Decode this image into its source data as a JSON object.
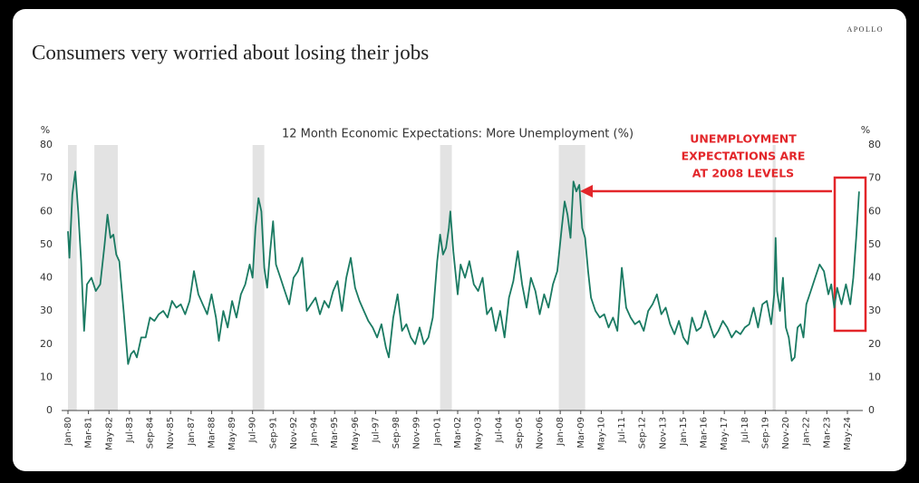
{
  "brand": "APOLLO",
  "chart_data": {
    "type": "line",
    "title": "Consumers very worried about losing their jobs",
    "subtitle": "12 Month Economic Expectations: More Unemployment (%)",
    "ylabel": "%",
    "y2label": "%",
    "annotation": [
      "UNEMPLOYMENT",
      "EXPECTATIONS ARE",
      "AT 2008 LEVELS"
    ],
    "annotation_color": "#e3262a",
    "color": "#1a7a62",
    "recession_color": "#e3e3e3",
    "ylim": [
      0,
      80
    ],
    "yticks": [
      0,
      10,
      20,
      30,
      40,
      50,
      60,
      70,
      80
    ],
    "y2lim": [
      0,
      80
    ],
    "y2ticks": [
      0,
      10,
      20,
      30,
      40,
      50,
      60,
      70,
      80
    ],
    "xticks": [
      "Jan-80",
      "Mar-81",
      "May-82",
      "Jul-83",
      "Sep-84",
      "Nov-85",
      "Jan-87",
      "Mar-88",
      "May-89",
      "Jul-90",
      "Sep-91",
      "Nov-92",
      "Jan-94",
      "Mar-95",
      "May-96",
      "Jul-97",
      "Sep-98",
      "Nov-99",
      "Jan-01",
      "Mar-02",
      "May-03",
      "Jul-04",
      "Sep-05",
      "Nov-06",
      "Jan-08",
      "Mar-09",
      "May-10",
      "Jul-11",
      "Sep-12",
      "Nov-13",
      "Jan-15",
      "Mar-16",
      "May-17",
      "Jul-18",
      "Sep-19",
      "Nov-20",
      "Jan-22",
      "Mar-23",
      "May-24"
    ],
    "recessions": [
      [
        "Jan-80",
        "Jul-80"
      ],
      [
        "Jul-81",
        "Nov-82"
      ],
      [
        "Jul-90",
        "Mar-91"
      ],
      [
        "Mar-01",
        "Nov-01"
      ],
      [
        "Dec-07",
        "Jun-09"
      ],
      [
        "Feb-20",
        "Apr-20"
      ]
    ],
    "x": [
      "Jan-80",
      "Feb-80",
      "Apr-80",
      "Jun-80",
      "Aug-80",
      "Oct-80",
      "Dec-80",
      "Feb-81",
      "May-81",
      "Aug-81",
      "Nov-81",
      "Feb-82",
      "Apr-82",
      "Jun-82",
      "Aug-82",
      "Oct-82",
      "Dec-82",
      "Mar-83",
      "Jun-83",
      "Aug-83",
      "Oct-83",
      "Dec-83",
      "Mar-84",
      "Jun-84",
      "Sep-84",
      "Dec-84",
      "Mar-85",
      "Jun-85",
      "Sep-85",
      "Dec-85",
      "Mar-86",
      "Jun-86",
      "Sep-86",
      "Dec-86",
      "Mar-87",
      "Jun-87",
      "Sep-87",
      "Dec-87",
      "Mar-88",
      "Jun-88",
      "Aug-88",
      "Nov-88",
      "Feb-89",
      "May-89",
      "Aug-89",
      "Nov-89",
      "Feb-90",
      "May-90",
      "Jul-90",
      "Sep-90",
      "Nov-90",
      "Jan-91",
      "Mar-91",
      "May-91",
      "Jul-91",
      "Sep-91",
      "Nov-91",
      "Feb-92",
      "May-92",
      "Aug-92",
      "Nov-92",
      "Feb-93",
      "May-93",
      "Aug-93",
      "Nov-93",
      "Feb-94",
      "May-94",
      "Aug-94",
      "Nov-94",
      "Feb-95",
      "May-95",
      "Aug-95",
      "Nov-95",
      "Feb-96",
      "May-96",
      "Aug-96",
      "Nov-96",
      "Feb-97",
      "May-97",
      "Aug-97",
      "Nov-97",
      "Feb-98",
      "Apr-98",
      "Jul-98",
      "Oct-98",
      "Jan-99",
      "Apr-99",
      "Jul-99",
      "Oct-99",
      "Jan-00",
      "Apr-00",
      "Jul-00",
      "Oct-00",
      "Jan-01",
      "Mar-01",
      "May-01",
      "Jul-01",
      "Sep-01",
      "Oct-01",
      "Dec-01",
      "Mar-02",
      "May-02",
      "Aug-02",
      "Nov-02",
      "Feb-03",
      "May-03",
      "Aug-03",
      "Nov-03",
      "Feb-04",
      "May-04",
      "Aug-04",
      "Nov-04",
      "Feb-05",
      "May-05",
      "Aug-05",
      "Nov-05",
      "Feb-06",
      "May-06",
      "Aug-06",
      "Nov-06",
      "Feb-07",
      "May-07",
      "Aug-07",
      "Nov-07",
      "Feb-08",
      "Apr-08",
      "Jun-08",
      "Aug-08",
      "Oct-08",
      "Dec-08",
      "Feb-09",
      "Apr-09",
      "Jun-09",
      "Aug-09",
      "Oct-09",
      "Jan-10",
      "Apr-10",
      "Jul-10",
      "Oct-10",
      "Jan-11",
      "Apr-11",
      "Jul-11",
      "Oct-11",
      "Jan-12",
      "Apr-12",
      "Jul-12",
      "Oct-12",
      "Jan-13",
      "Apr-13",
      "Jul-13",
      "Oct-13",
      "Jan-14",
      "Apr-14",
      "Jul-14",
      "Oct-14",
      "Jan-15",
      "Apr-15",
      "Jul-15",
      "Oct-15",
      "Jan-16",
      "Apr-16",
      "Jul-16",
      "Oct-16",
      "Jan-17",
      "Apr-17",
      "Jul-17",
      "Oct-17",
      "Jan-18",
      "Apr-18",
      "Jul-18",
      "Oct-18",
      "Jan-19",
      "Apr-19",
      "Jul-19",
      "Oct-19",
      "Jan-20",
      "Mar-20",
      "Apr-20",
      "May-20",
      "Jul-20",
      "Sep-20",
      "Nov-20",
      "Jan-21",
      "Mar-21",
      "May-21",
      "Jul-21",
      "Sep-21",
      "Nov-21",
      "Jan-22",
      "Apr-22",
      "Jul-22",
      "Oct-22",
      "Jan-23",
      "Apr-23",
      "Jun-23",
      "Aug-23",
      "Oct-23",
      "Jan-24",
      "Apr-24",
      "Jul-24",
      "Sep-24",
      "Nov-24",
      "Jan-25"
    ],
    "values": [
      54,
      46,
      65,
      72,
      60,
      45,
      24,
      38,
      40,
      36,
      38,
      50,
      59,
      52,
      53,
      47,
      45,
      30,
      14,
      17,
      18,
      16,
      22,
      22,
      28,
      27,
      29,
      30,
      28,
      33,
      31,
      32,
      29,
      33,
      42,
      35,
      32,
      29,
      35,
      28,
      21,
      30,
      25,
      33,
      28,
      35,
      38,
      44,
      40,
      55,
      64,
      60,
      43,
      37,
      48,
      57,
      44,
      40,
      36,
      32,
      40,
      42,
      46,
      30,
      32,
      34,
      29,
      33,
      31,
      36,
      39,
      30,
      40,
      46,
      37,
      33,
      30,
      27,
      25,
      22,
      26,
      19,
      16,
      28,
      35,
      24,
      26,
      22,
      20,
      25,
      20,
      22,
      28,
      45,
      53,
      47,
      49,
      55,
      60,
      48,
      35,
      44,
      40,
      45,
      38,
      36,
      40,
      29,
      31,
      24,
      30,
      22,
      34,
      39,
      48,
      38,
      31,
      40,
      36,
      29,
      35,
      31,
      38,
      42,
      55,
      63,
      59,
      52,
      69,
      66,
      68,
      55,
      52,
      42,
      34,
      30,
      28,
      29,
      25,
      28,
      24,
      43,
      31,
      28,
      26,
      27,
      24,
      30,
      32,
      35,
      29,
      31,
      26,
      23,
      27,
      22,
      20,
      28,
      24,
      25,
      30,
      26,
      22,
      24,
      27,
      25,
      22,
      24,
      23,
      25,
      26,
      31,
      25,
      32,
      33,
      26,
      35,
      52,
      36,
      30,
      40,
      25,
      22,
      15,
      16,
      25,
      26,
      22,
      32,
      36,
      40,
      44,
      42,
      35,
      38,
      31,
      37,
      32,
      38,
      32,
      40,
      52,
      66
    ]
  }
}
